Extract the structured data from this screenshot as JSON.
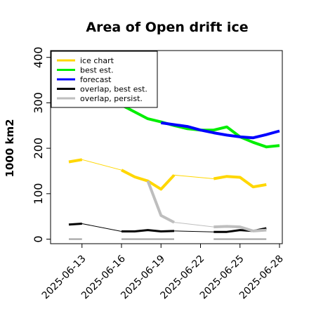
{
  "chart_data": {
    "type": "line",
    "title": "Area of Open drift ice",
    "ylabel": "1000 km2",
    "xlabel": "",
    "ylim": [
      -10,
      415
    ],
    "xlim": [
      "2025-06-12",
      "2025-06-28"
    ],
    "yticks": [
      0,
      100,
      200,
      300,
      400
    ],
    "xticks": [
      {
        "date": "2025-06-13",
        "label": "2025-06-13",
        "color": "#000000"
      },
      {
        "date": "2025-06-16",
        "label": "2025-06-16",
        "color": "#000000"
      },
      {
        "date": "2025-06-19",
        "label": "2025-06-19",
        "color": "#228B22"
      },
      {
        "date": "2025-06-22",
        "label": "2025-06-22",
        "color": "#000000"
      },
      {
        "date": "2025-06-25",
        "label": "2025-06-25",
        "color": "#000000"
      },
      {
        "date": "2025-06-28",
        "label": "2025-06-28",
        "color": "#000000"
      }
    ],
    "grid": false,
    "legend_position": "top-left",
    "series": [
      {
        "name": "ice chart",
        "color": "#FFD700",
        "width": 4,
        "segments": [
          [
            [
              "2025-06-12",
              170
            ],
            [
              "2025-06-13",
              175
            ]
          ],
          [
            [
              "2025-06-16",
              152
            ],
            [
              "2025-06-17",
              137
            ],
            [
              "2025-06-18",
              128
            ],
            [
              "2025-06-19",
              110
            ],
            [
              "2025-06-20",
              141
            ]
          ],
          [
            [
              "2025-06-23",
              133
            ],
            [
              "2025-06-24",
              138
            ],
            [
              "2025-06-25",
              136
            ],
            [
              "2025-06-26",
              115
            ],
            [
              "2025-06-27",
              120
            ]
          ]
        ],
        "connectors": [
          [
            [
              "2025-06-13",
              175
            ],
            [
              "2025-06-16",
              152
            ]
          ],
          [
            [
              "2025-06-20",
              141
            ],
            [
              "2025-06-23",
              133
            ]
          ]
        ]
      },
      {
        "name": "best est.",
        "color": "#00EE00",
        "width": 4,
        "segments": [
          [
            [
              "2025-06-16",
              295
            ],
            [
              "2025-06-17",
              280
            ],
            [
              "2025-06-18",
              265
            ],
            [
              "2025-06-19",
              258
            ],
            [
              "2025-06-20",
              250
            ],
            [
              "2025-06-21",
              243
            ],
            [
              "2025-06-22",
              240
            ],
            [
              "2025-06-23",
              240
            ],
            [
              "2025-06-24",
              247
            ],
            [
              "2025-06-25",
              225
            ],
            [
              "2025-06-26",
              213
            ],
            [
              "2025-06-27",
              203
            ],
            [
              "2025-06-28",
              206
            ]
          ]
        ],
        "connectors": []
      },
      {
        "name": "forecast",
        "color": "#0000FF",
        "width": 4,
        "segments": [
          [
            [
              "2025-06-19",
              256
            ],
            [
              "2025-06-20",
              252
            ],
            [
              "2025-06-21",
              248
            ],
            [
              "2025-06-22",
              240
            ],
            [
              "2025-06-23",
              234
            ],
            [
              "2025-06-24",
              229
            ],
            [
              "2025-06-25",
              225
            ],
            [
              "2025-06-26",
              223
            ],
            [
              "2025-06-27",
              230
            ],
            [
              "2025-06-28",
              238
            ]
          ]
        ],
        "connectors": []
      },
      {
        "name": "overlap, best est.",
        "color": "#000000",
        "width": 3,
        "segments": [
          [
            [
              "2025-06-12",
              32
            ],
            [
              "2025-06-13",
              34
            ]
          ],
          [
            [
              "2025-06-16",
              17
            ],
            [
              "2025-06-17",
              17
            ],
            [
              "2025-06-18",
              20
            ],
            [
              "2025-06-19",
              17
            ],
            [
              "2025-06-20",
              18
            ]
          ],
          [
            [
              "2025-06-23",
              16
            ],
            [
              "2025-06-24",
              16
            ],
            [
              "2025-06-25",
              20
            ],
            [
              "2025-06-26",
              18
            ],
            [
              "2025-06-27",
              24
            ]
          ]
        ],
        "connectors": [
          [
            [
              "2025-06-13",
              34
            ],
            [
              "2025-06-16",
              17
            ]
          ],
          [
            [
              "2025-06-20",
              18
            ],
            [
              "2025-06-23",
              16
            ]
          ]
        ]
      },
      {
        "name": "overlap, persist.",
        "color": "#BEBEBE",
        "width": 4,
        "segments": [
          [
            [
              "2025-06-18",
              128
            ],
            [
              "2025-06-19",
              52
            ],
            [
              "2025-06-20",
              37
            ]
          ],
          [
            [
              "2025-06-23",
              27
            ],
            [
              "2025-06-24",
              28
            ],
            [
              "2025-06-25",
              27
            ],
            [
              "2025-06-26",
              18
            ],
            [
              "2025-06-27",
              20
            ]
          ]
        ],
        "connectors": [
          [
            [
              "2025-06-20",
              37
            ],
            [
              "2025-06-23",
              27
            ]
          ]
        ]
      }
    ],
    "baseline_marks": [
      {
        "color": "#9E9E9E",
        "y": 0,
        "ranges": [
          [
            "2025-06-12",
            "2025-06-13"
          ],
          [
            "2025-06-16",
            "2025-06-20"
          ],
          [
            "2025-06-23",
            "2025-06-27"
          ]
        ]
      }
    ]
  }
}
